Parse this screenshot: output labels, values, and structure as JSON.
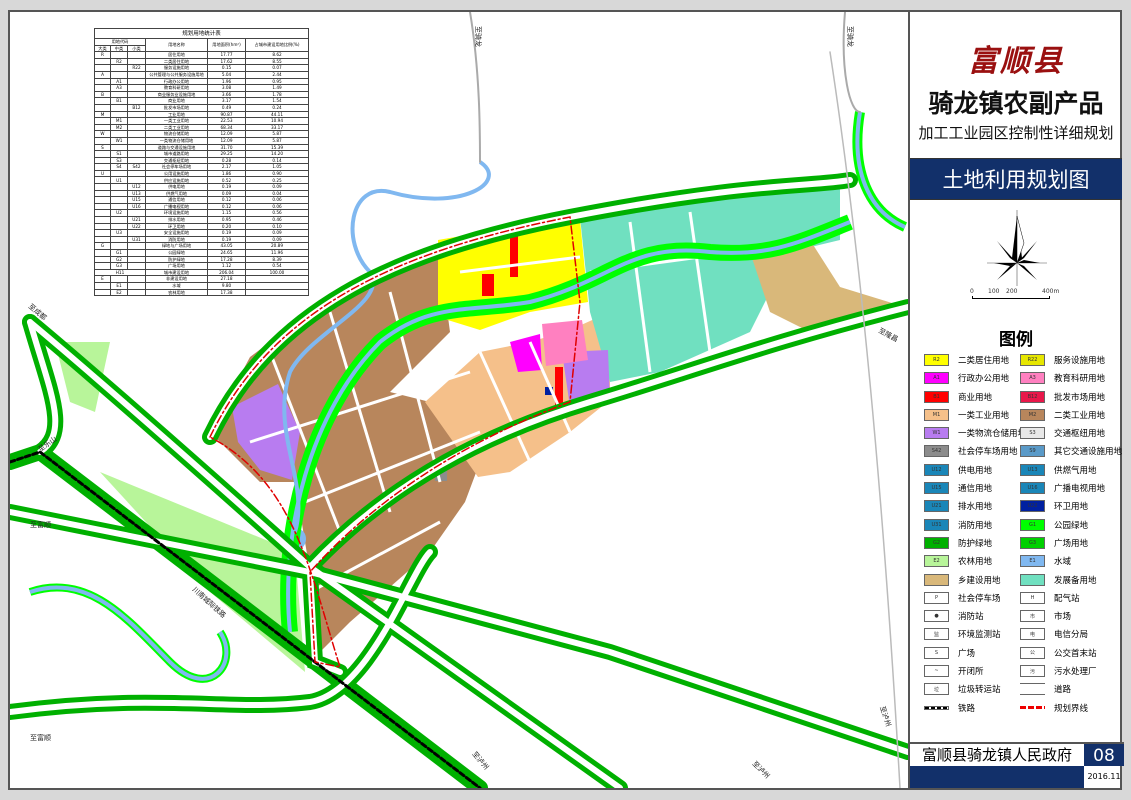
{
  "title": {
    "logo": "富顺县",
    "line1": "骑龙镇农副产品",
    "line2": "加工工业园区控制性详细规划",
    "map_name": "土地利用规划图"
  },
  "scale_bar": {
    "labels": [
      "0",
      "100",
      "200",
      "400m"
    ]
  },
  "legend": {
    "title": "图例",
    "items": [
      {
        "label": "二类居住用地",
        "color": "#ffff00",
        "code": "R2"
      },
      {
        "label": "服务设施用地",
        "color": "#e6e600",
        "code": "R22"
      },
      {
        "label": "行政办公用地",
        "color": "#ff00ff",
        "code": "A1"
      },
      {
        "label": "教育科研用地",
        "color": "#ff80c0",
        "code": "A3"
      },
      {
        "label": "商业用地",
        "color": "#ff0000",
        "code": "B1"
      },
      {
        "label": "批发市场用地",
        "color": "#e8174a",
        "code": "B12"
      },
      {
        "label": "一类工业用地",
        "color": "#f5c08a",
        "code": "M1"
      },
      {
        "label": "二类工业用地",
        "color": "#b8865c",
        "code": "M2"
      },
      {
        "label": "一类物流仓储用地",
        "color": "#b87cf0",
        "code": "W1"
      },
      {
        "label": "交通枢纽用地",
        "color": "#e8e8e8",
        "code": "S3"
      },
      {
        "label": "社会停车场用地",
        "color": "#8c8c8c",
        "code": "S42"
      },
      {
        "label": "其它交通设施用地",
        "color": "#5a9ac8",
        "code": "S9"
      },
      {
        "label": "供电用地",
        "color": "#1a86b8",
        "code": "U12"
      },
      {
        "label": "供燃气用地",
        "color": "#1a86b8",
        "code": "U13"
      },
      {
        "label": "通信用地",
        "color": "#1a86b8",
        "code": "U15"
      },
      {
        "label": "广播电视用地",
        "color": "#1a86b8",
        "code": "U16"
      },
      {
        "label": "排水用地",
        "color": "#1a86b8",
        "code": "U21"
      },
      {
        "label": "环卫用地",
        "color": "#0020a0",
        "code": "U22"
      },
      {
        "label": "消防用地",
        "color": "#1a86b8",
        "code": "U31"
      },
      {
        "label": "公园绿地",
        "color": "#00ff00",
        "code": "G1"
      },
      {
        "label": "防护绿地",
        "color": "#00b000",
        "code": "G2"
      },
      {
        "label": "广场用地",
        "color": "#00d000",
        "code": "G3"
      },
      {
        "label": "农林用地",
        "color": "#b8f59a",
        "code": "E2"
      },
      {
        "label": "水域",
        "color": "#80b8f0",
        "code": "E1"
      },
      {
        "label": "乡建设用地",
        "color": "#d9b87a",
        "code": ""
      },
      {
        "label": "发展备用地",
        "color": "#70e0c0",
        "code": ""
      },
      {
        "label": "社会停车场",
        "color": "#ffffff",
        "code": "P"
      },
      {
        "label": "配气站",
        "color": "#ffffff",
        "code": "H"
      },
      {
        "label": "消防站",
        "color": "#ffffff",
        "code": "●"
      },
      {
        "label": "市场",
        "color": "#ffffff",
        "code": "市"
      },
      {
        "label": "环境监测站",
        "color": "#ffffff",
        "code": "监"
      },
      {
        "label": "电信分局",
        "color": "#ffffff",
        "code": "电"
      },
      {
        "label": "广场",
        "color": "#ffffff",
        "code": "S"
      },
      {
        "label": "公交首末站",
        "color": "#ffffff",
        "code": "公"
      },
      {
        "label": "开闭所",
        "color": "#ffffff",
        "code": "~"
      },
      {
        "label": "污水处理厂",
        "color": "#ffffff",
        "code": "污"
      },
      {
        "label": "垃圾转运站",
        "color": "#ffffff",
        "code": "垃"
      },
      {
        "label": "道路",
        "color": "#ffffff",
        "code": ""
      },
      {
        "label": "铁路",
        "color": "#ffffff",
        "code": ""
      },
      {
        "label": "规划界线",
        "color": "#ffffff",
        "code": ""
      }
    ]
  },
  "footer": {
    "authority": "富顺县骑龙镇人民政府",
    "sheet_no": "08",
    "date": "2016.11"
  },
  "map_labels": {
    "north_1": "至骑龙",
    "north_2": "至骑龙",
    "east": "至隆昌",
    "southeast": "至泸州",
    "south_1": "至泸州",
    "south_2": "至泸州",
    "west_1": "至成都",
    "west_2": "至乐山",
    "west_3": "至富顺",
    "west_4": "至富顺",
    "railway": "川南城际铁路"
  },
  "table": {
    "title": "规划用地统计表",
    "headers": {
      "code": "用地代码",
      "major": "大类",
      "medium": "中类",
      "minor": "小类",
      "name": "用地名称",
      "area": "用地面积(hm²)",
      "ratio": "占城市建设用地比例(%)"
    },
    "rows": [
      [
        "R",
        "",
        "",
        "居住用地",
        "17.77",
        "8.62"
      ],
      [
        "",
        "R2",
        "",
        "二类居住用地",
        "17.62",
        "8.55"
      ],
      [
        "",
        "",
        "R22",
        "服务设施用地",
        "0.15",
        "0.07"
      ],
      [
        "A",
        "",
        "",
        "公共管理与公共服务设施用地",
        "5.04",
        "2.44"
      ],
      [
        "",
        "A1",
        "",
        "行政办公用地",
        "1.96",
        "0.95"
      ],
      [
        "",
        "A3",
        "",
        "教育科研用地",
        "3.08",
        "1.49"
      ],
      [
        "B",
        "",
        "",
        "商业服务业设施用地",
        "3.66",
        "1.78"
      ],
      [
        "",
        "B1",
        "",
        "商业用地",
        "3.17",
        "1.54"
      ],
      [
        "",
        "",
        "B12",
        "批发市场用地",
        "0.49",
        "0.24"
      ],
      [
        "M",
        "",
        "",
        "工业用地",
        "90.87",
        "44.11"
      ],
      [
        "",
        "M1",
        "",
        "一类工业用地",
        "22.53",
        "10.94"
      ],
      [
        "",
        "M2",
        "",
        "二类工业用地",
        "68.34",
        "33.17"
      ],
      [
        "W",
        "",
        "",
        "物流仓储用地",
        "12.09",
        "5.87"
      ],
      [
        "",
        "W1",
        "",
        "一类物流仓储用地",
        "12.09",
        "5.87"
      ],
      [
        "S",
        "",
        "",
        "道路与交通设施用地",
        "31.70",
        "15.39"
      ],
      [
        "",
        "S1",
        "",
        "城市道路用地",
        "29.25",
        "14.20"
      ],
      [
        "",
        "S3",
        "",
        "交通枢纽用地",
        "0.28",
        "0.14"
      ],
      [
        "",
        "S4",
        "S42",
        "社会停车场用地",
        "2.17",
        "1.05"
      ],
      [
        "U",
        "",
        "",
        "公用设施用地",
        "1.86",
        "0.90"
      ],
      [
        "",
        "U1",
        "",
        "供应设施用地",
        "0.52",
        "0.25"
      ],
      [
        "",
        "",
        "U12",
        "供电用地",
        "0.19",
        "0.09"
      ],
      [
        "",
        "",
        "U13",
        "供燃气用地",
        "0.09",
        "0.04"
      ],
      [
        "",
        "",
        "U15",
        "通信用地",
        "0.12",
        "0.06"
      ],
      [
        "",
        "",
        "U16",
        "广播电视用地",
        "0.12",
        "0.06"
      ],
      [
        "",
        "U2",
        "",
        "环境设施用地",
        "1.15",
        "0.56"
      ],
      [
        "",
        "",
        "U21",
        "排水用地",
        "0.95",
        "0.46"
      ],
      [
        "",
        "",
        "U22",
        "环卫用地",
        "0.20",
        "0.10"
      ],
      [
        "",
        "U3",
        "",
        "安全设施用地",
        "0.19",
        "0.09"
      ],
      [
        "",
        "",
        "U31",
        "消防用地",
        "0.19",
        "0.09"
      ],
      [
        "G",
        "",
        "",
        "绿地与广场用地",
        "43.05",
        "20.89"
      ],
      [
        "",
        "G1",
        "",
        "公园绿地",
        "24.65",
        "11.96"
      ],
      [
        "",
        "G2",
        "",
        "防护绿地",
        "17.28",
        "8.39"
      ],
      [
        "",
        "G3",
        "",
        "广场用地",
        "1.12",
        "0.54"
      ],
      [
        "H11",
        "",
        "",
        "城市建设用地",
        "206.04",
        "100.00"
      ],
      [
        "E",
        "",
        "",
        "非建设用地",
        "27.18",
        ""
      ],
      [
        "",
        "E1",
        "",
        "水域",
        "9.80",
        ""
      ],
      [
        "",
        "E2",
        "",
        "农林用地",
        "17.38",
        ""
      ]
    ]
  }
}
